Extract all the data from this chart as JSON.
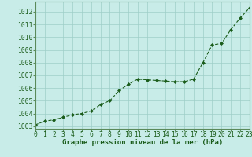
{
  "x": [
    0,
    1,
    2,
    3,
    4,
    5,
    6,
    7,
    8,
    9,
    10,
    11,
    12,
    13,
    14,
    15,
    16,
    17,
    18,
    19,
    20,
    21,
    22,
    23
  ],
  "y": [
    1003.1,
    1003.4,
    1003.5,
    1003.7,
    1003.9,
    1004.0,
    1004.2,
    1004.7,
    1005.0,
    1005.8,
    1006.3,
    1006.7,
    1006.65,
    1006.6,
    1006.55,
    1006.5,
    1006.5,
    1006.7,
    1008.0,
    1009.4,
    1009.5,
    1010.6,
    1011.5,
    1012.3
  ],
  "xlabel": "Graphe pression niveau de la mer (hPa)",
  "xlim": [
    0,
    23
  ],
  "ylim": [
    1002.8,
    1012.8
  ],
  "yticks": [
    1003,
    1004,
    1005,
    1006,
    1007,
    1008,
    1009,
    1010,
    1011,
    1012
  ],
  "xticks": [
    0,
    1,
    2,
    3,
    4,
    5,
    6,
    7,
    8,
    9,
    10,
    11,
    12,
    13,
    14,
    15,
    16,
    17,
    18,
    19,
    20,
    21,
    22,
    23
  ],
  "line_color": "#1a5c1a",
  "marker_color": "#1a5c1a",
  "bg_color": "#c8ece8",
  "grid_color": "#9ecec8",
  "xlabel_color": "#1a5c1a",
  "xlabel_fontsize": 6.5,
  "tick_fontsize": 5.8,
  "tick_color": "#1a5c1a",
  "spine_color": "#5a8a5a"
}
